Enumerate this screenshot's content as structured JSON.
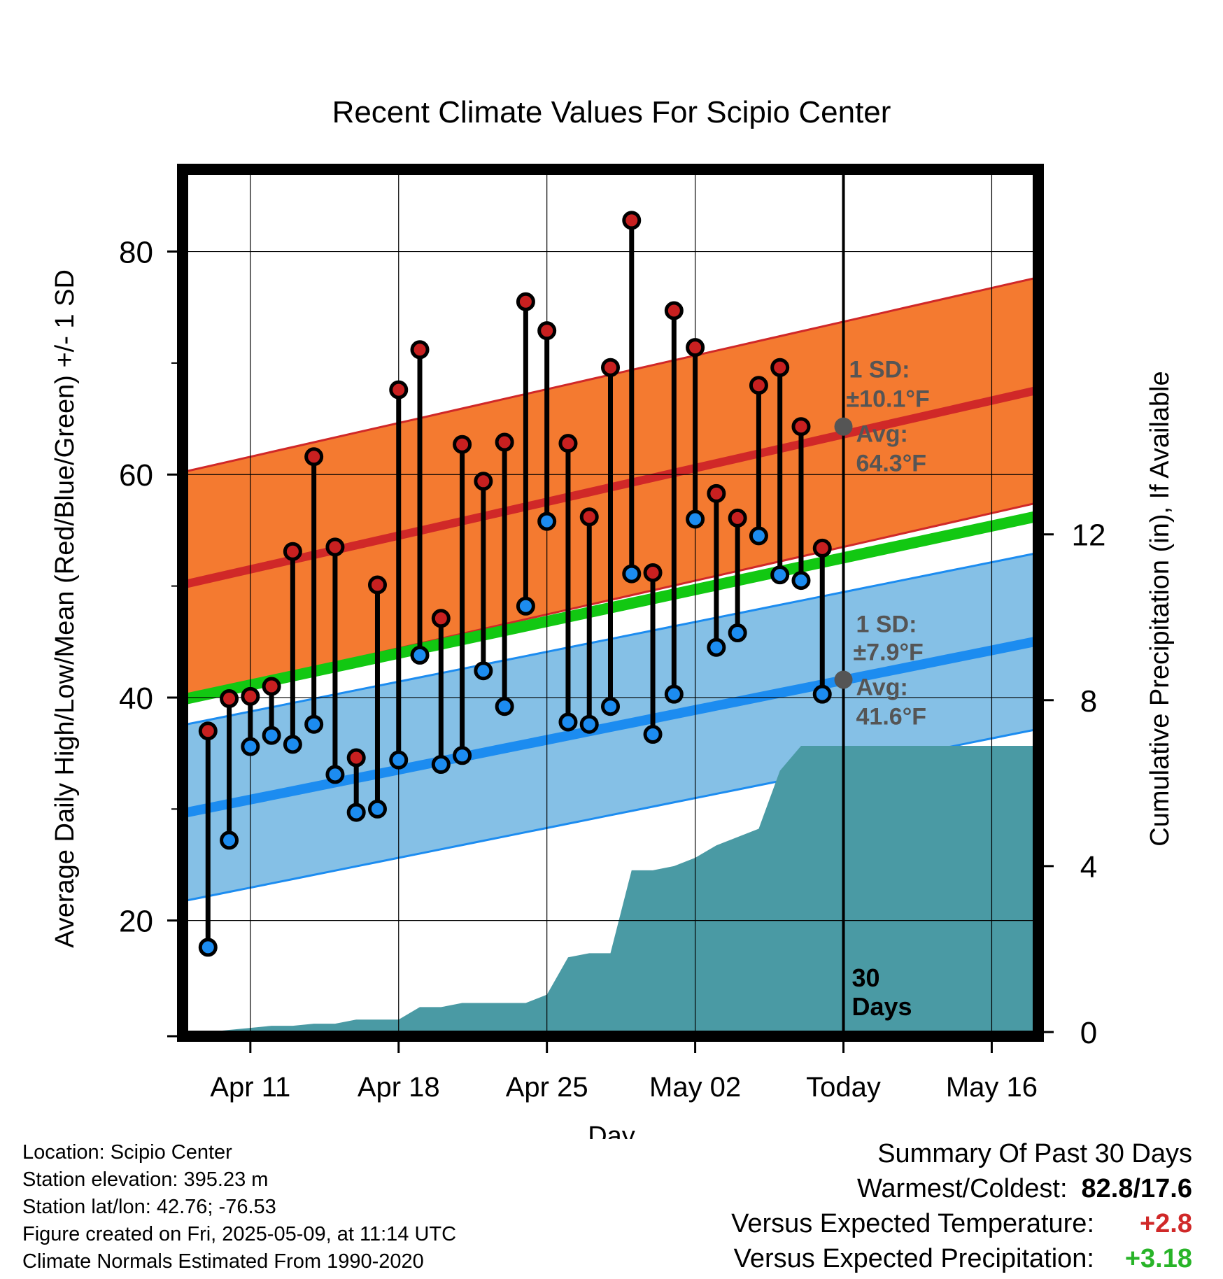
{
  "chart_data": {
    "type": "range",
    "title": "Recent Climate Values For Scipio Center",
    "xlabel": "Day",
    "ylabel": "Average Daily High/Low/Mean (Red/Blue/Green) +/- 1 SD",
    "ylabel_right": "Cumulative Precipitation (in), If Available",
    "ylim": [
      10,
      87
    ],
    "y2lim": [
      0,
      20.7
    ],
    "yticks": [
      "20",
      "40",
      "60",
      "80"
    ],
    "y2ticks": [
      "0",
      "4",
      "8",
      "12"
    ],
    "x_ticklabels": [
      "Apr 11",
      "Apr 18",
      "Apr 25",
      "May 02",
      "Today",
      "May 16"
    ],
    "x_start": "2025-04-08",
    "x_end": "2025-05-18",
    "today": "2025-05-09",
    "days": [
      "2025-04-09",
      "2025-04-10",
      "2025-04-11",
      "2025-04-12",
      "2025-04-13",
      "2025-04-14",
      "2025-04-15",
      "2025-04-16",
      "2025-04-17",
      "2025-04-18",
      "2025-04-19",
      "2025-04-20",
      "2025-04-21",
      "2025-04-22",
      "2025-04-23",
      "2025-04-24",
      "2025-04-25",
      "2025-04-26",
      "2025-04-27",
      "2025-04-28",
      "2025-04-29",
      "2025-04-30",
      "2025-05-01",
      "2025-05-02",
      "2025-05-03",
      "2025-05-04",
      "2025-05-05",
      "2025-05-06",
      "2025-05-07",
      "2025-05-08"
    ],
    "highs": [
      37.0,
      39.9,
      40.1,
      41.0,
      53.1,
      61.6,
      53.5,
      34.6,
      50.1,
      67.6,
      71.2,
      47.1,
      62.7,
      59.4,
      62.9,
      75.5,
      72.9,
      62.8,
      56.2,
      69.6,
      82.8,
      51.2,
      74.7,
      71.4,
      58.3,
      56.1,
      68.0,
      69.6,
      64.3,
      53.4
    ],
    "lows": [
      17.6,
      27.2,
      35.6,
      36.6,
      35.8,
      37.6,
      33.1,
      29.7,
      30.0,
      34.4,
      43.8,
      34.0,
      34.8,
      42.4,
      39.2,
      48.2,
      55.8,
      37.8,
      37.6,
      39.2,
      51.1,
      36.7,
      40.3,
      56.0,
      44.5,
      45.8,
      54.5,
      51.0,
      50.5,
      40.3
    ],
    "normal_high": {
      "start": 50.2,
      "end": 67.5
    },
    "normal_high_sd": 10.1,
    "normal_low": {
      "start": 29.7,
      "end": 45.0
    },
    "normal_low_sd": 7.9,
    "normal_mean": {
      "start": 39.9,
      "end": 56.2
    },
    "precip_cumulative": [
      {
        "date": "2025-04-09",
        "value": 0.0
      },
      {
        "date": "2025-04-10",
        "value": 0.05
      },
      {
        "date": "2025-04-11",
        "value": 0.1
      },
      {
        "date": "2025-04-12",
        "value": 0.15
      },
      {
        "date": "2025-04-13",
        "value": 0.15
      },
      {
        "date": "2025-04-14",
        "value": 0.2
      },
      {
        "date": "2025-04-15",
        "value": 0.2
      },
      {
        "date": "2025-04-16",
        "value": 0.3
      },
      {
        "date": "2025-04-17",
        "value": 0.3
      },
      {
        "date": "2025-04-18",
        "value": 0.3
      },
      {
        "date": "2025-04-19",
        "value": 0.6
      },
      {
        "date": "2025-04-20",
        "value": 0.6
      },
      {
        "date": "2025-04-21",
        "value": 0.7
      },
      {
        "date": "2025-04-22",
        "value": 0.7
      },
      {
        "date": "2025-04-23",
        "value": 0.7
      },
      {
        "date": "2025-04-24",
        "value": 0.7
      },
      {
        "date": "2025-04-25",
        "value": 0.9
      },
      {
        "date": "2025-04-26",
        "value": 1.8
      },
      {
        "date": "2025-04-27",
        "value": 1.9
      },
      {
        "date": "2025-04-28",
        "value": 1.9
      },
      {
        "date": "2025-04-29",
        "value": 3.9
      },
      {
        "date": "2025-04-30",
        "value": 3.9
      },
      {
        "date": "2025-05-01",
        "value": 4.0
      },
      {
        "date": "2025-05-02",
        "value": 4.2
      },
      {
        "date": "2025-05-03",
        "value": 4.5
      },
      {
        "date": "2025-05-04",
        "value": 4.7
      },
      {
        "date": "2025-05-05",
        "value": 4.9
      },
      {
        "date": "2025-05-06",
        "value": 6.3
      },
      {
        "date": "2025-05-07",
        "value": 6.9
      },
      {
        "date": "2025-05-08",
        "value": 6.9
      },
      {
        "date": "2025-05-18",
        "value": 6.9
      }
    ],
    "colors": {
      "high_band": "#f47a30",
      "high_line": "#d02828",
      "low_band": "#85c0e6",
      "low_line": "#1c8cf0",
      "mean_line": "#12c812",
      "precip": "#4a9aa4",
      "high_marker": "#c82020",
      "low_marker": "#1c8cf0",
      "annotation": "#555555"
    },
    "annotations": {
      "high_sd_label": "1 SD:",
      "high_sd_value": "±10.1°F",
      "high_avg_label": "Avg:",
      "high_avg_value": "64.3°F",
      "high_avg": 64.3,
      "low_sd_label": "1 SD:",
      "low_sd_value": "±7.9°F",
      "low_avg_label": "Avg:",
      "low_avg_value": "41.6°F",
      "low_avg": 41.6,
      "days_count": "30",
      "days_label": "Days"
    }
  },
  "info": {
    "location": "Location: Scipio Center",
    "elevation": "Station elevation: 395.23 m",
    "latlon": "Station lat/lon: 42.76; -76.53",
    "created": "Figure created on Fri, 2025-05-09, at 11:14 UTC",
    "normals": "Climate Normals Estimated From 1990-2020"
  },
  "summary": {
    "title": "Summary Of Past 30 Days",
    "warmest_label": "Warmest/Coldest:",
    "warmest_value": "82.8/17.6",
    "temp_label": "Versus Expected Temperature:",
    "temp_value": "+2.8",
    "temp_color": "#d02828",
    "precip_label": "Versus Expected Precipitation:",
    "precip_value": "+3.18",
    "precip_color": "#28b428"
  }
}
